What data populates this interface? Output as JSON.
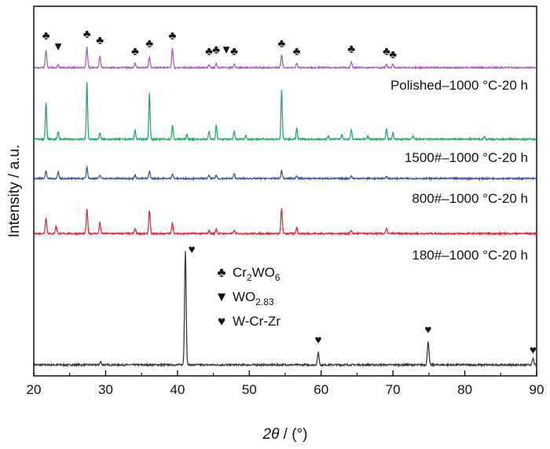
{
  "chart_data": {
    "type": "line",
    "xlabel_symbol": "2θ",
    "xlabel_unit": " / (°)",
    "ylabel": "Intensity / a.u.",
    "xlim": [
      20,
      90
    ],
    "x_ticks": [
      20,
      30,
      40,
      50,
      60,
      70,
      80,
      90
    ],
    "y_ticks_shown": false,
    "grid": false,
    "colors": {
      "substrate": "#3a3a3a",
      "180#": "#d8323a",
      "800#": "#3a58b0",
      "1500#": "#2aa86a",
      "polished": "#a864b8"
    },
    "series": [
      {
        "key": "substrate",
        "name": "",
        "peaks": [
          {
            "x": 29.3,
            "h": 4
          },
          {
            "x": 41.1,
            "h": 145
          },
          {
            "x": 59.6,
            "h": 16
          },
          {
            "x": 74.9,
            "h": 30
          },
          {
            "x": 89.5,
            "h": 8
          }
        ]
      },
      {
        "key": "180#",
        "name": "180#–1000 °C-20 h",
        "peaks": [
          {
            "x": 21.7,
            "h": 20
          },
          {
            "x": 23.1,
            "h": 10
          },
          {
            "x": 27.4,
            "h": 31
          },
          {
            "x": 29.2,
            "h": 14
          },
          {
            "x": 34.1,
            "h": 6
          },
          {
            "x": 36.1,
            "h": 30
          },
          {
            "x": 39.3,
            "h": 14
          },
          {
            "x": 44.4,
            "h": 4
          },
          {
            "x": 45.4,
            "h": 6
          },
          {
            "x": 47.9,
            "h": 4
          },
          {
            "x": 54.5,
            "h": 32
          },
          {
            "x": 56.6,
            "h": 8
          },
          {
            "x": 64.2,
            "h": 4
          },
          {
            "x": 69.1,
            "h": 6
          }
        ]
      },
      {
        "key": "800#",
        "name": "800#–1000 °C-20 h",
        "peaks": [
          {
            "x": 21.7,
            "h": 10
          },
          {
            "x": 23.4,
            "h": 8
          },
          {
            "x": 27.4,
            "h": 15
          },
          {
            "x": 29.2,
            "h": 4
          },
          {
            "x": 34.1,
            "h": 4
          },
          {
            "x": 36.1,
            "h": 10
          },
          {
            "x": 39.3,
            "h": 6
          },
          {
            "x": 44.4,
            "h": 4
          },
          {
            "x": 45.4,
            "h": 4
          },
          {
            "x": 47.9,
            "h": 6
          },
          {
            "x": 54.5,
            "h": 10
          },
          {
            "x": 56.6,
            "h": 4
          },
          {
            "x": 64.2,
            "h": 3
          },
          {
            "x": 69.1,
            "h": 3
          }
        ]
      },
      {
        "key": "1500#",
        "name": "1500#–1000 °C-20 h",
        "peaks": [
          {
            "x": 21.7,
            "h": 46
          },
          {
            "x": 23.4,
            "h": 10
          },
          {
            "x": 27.4,
            "h": 72
          },
          {
            "x": 29.2,
            "h": 8
          },
          {
            "x": 34.1,
            "h": 12
          },
          {
            "x": 36.1,
            "h": 58
          },
          {
            "x": 39.3,
            "h": 18
          },
          {
            "x": 41.3,
            "h": 6
          },
          {
            "x": 44.4,
            "h": 10
          },
          {
            "x": 45.4,
            "h": 18
          },
          {
            "x": 47.9,
            "h": 10
          },
          {
            "x": 49.5,
            "h": 5
          },
          {
            "x": 54.5,
            "h": 62
          },
          {
            "x": 56.6,
            "h": 14
          },
          {
            "x": 61.0,
            "h": 4
          },
          {
            "x": 62.9,
            "h": 6
          },
          {
            "x": 64.2,
            "h": 12
          },
          {
            "x": 66.5,
            "h": 4
          },
          {
            "x": 69.1,
            "h": 14
          },
          {
            "x": 70.0,
            "h": 8
          },
          {
            "x": 72.8,
            "h": 4
          },
          {
            "x": 82.7,
            "h": 4
          }
        ]
      },
      {
        "key": "polished",
        "name": "Polished–1000 °C-20 h",
        "peaks": [
          {
            "x": 21.7,
            "h": 22
          },
          {
            "x": 23.4,
            "h": 4
          },
          {
            "x": 27.4,
            "h": 26
          },
          {
            "x": 29.2,
            "h": 14
          },
          {
            "x": 34.1,
            "h": 6
          },
          {
            "x": 36.1,
            "h": 14
          },
          {
            "x": 39.3,
            "h": 25
          },
          {
            "x": 44.4,
            "h": 4
          },
          {
            "x": 45.4,
            "h": 5
          },
          {
            "x": 47.9,
            "h": 4
          },
          {
            "x": 54.5,
            "h": 16
          },
          {
            "x": 56.6,
            "h": 6
          },
          {
            "x": 64.2,
            "h": 8
          },
          {
            "x": 69.1,
            "h": 4
          },
          {
            "x": 70.0,
            "h": 4
          }
        ]
      }
    ],
    "phase_markers": [
      {
        "x": 21.7,
        "phase": "club"
      },
      {
        "x": 23.4,
        "phase": "triangle"
      },
      {
        "x": 27.4,
        "phase": "club"
      },
      {
        "x": 29.2,
        "phase": "club"
      },
      {
        "x": 34.1,
        "phase": "club"
      },
      {
        "x": 36.1,
        "phase": "club"
      },
      {
        "x": 39.3,
        "phase": "club"
      },
      {
        "x": 44.4,
        "phase": "club"
      },
      {
        "x": 45.4,
        "phase": "club"
      },
      {
        "x": 46.8,
        "phase": "triangle"
      },
      {
        "x": 47.9,
        "phase": "club"
      },
      {
        "x": 54.5,
        "phase": "club"
      },
      {
        "x": 56.6,
        "phase": "club"
      },
      {
        "x": 64.2,
        "phase": "club"
      },
      {
        "x": 69.1,
        "phase": "club"
      },
      {
        "x": 70.0,
        "phase": "club"
      },
      {
        "x": 42.0,
        "phase": "heart"
      },
      {
        "x": 59.6,
        "phase": "heart"
      },
      {
        "x": 74.9,
        "phase": "heart"
      },
      {
        "x": 89.5,
        "phase": "heart"
      }
    ],
    "legend": {
      "placement": "center",
      "entries": [
        {
          "symbol": "♣",
          "main": "Cr",
          "sub1": "2",
          "mid": "WO",
          "sub2": "6"
        },
        {
          "symbol": "▼",
          "main": "WO",
          "sub1": "2.83",
          "mid": "",
          "sub2": ""
        },
        {
          "symbol": "♥",
          "main": "W-Cr-Zr",
          "sub1": "",
          "mid": "",
          "sub2": ""
        }
      ]
    }
  }
}
